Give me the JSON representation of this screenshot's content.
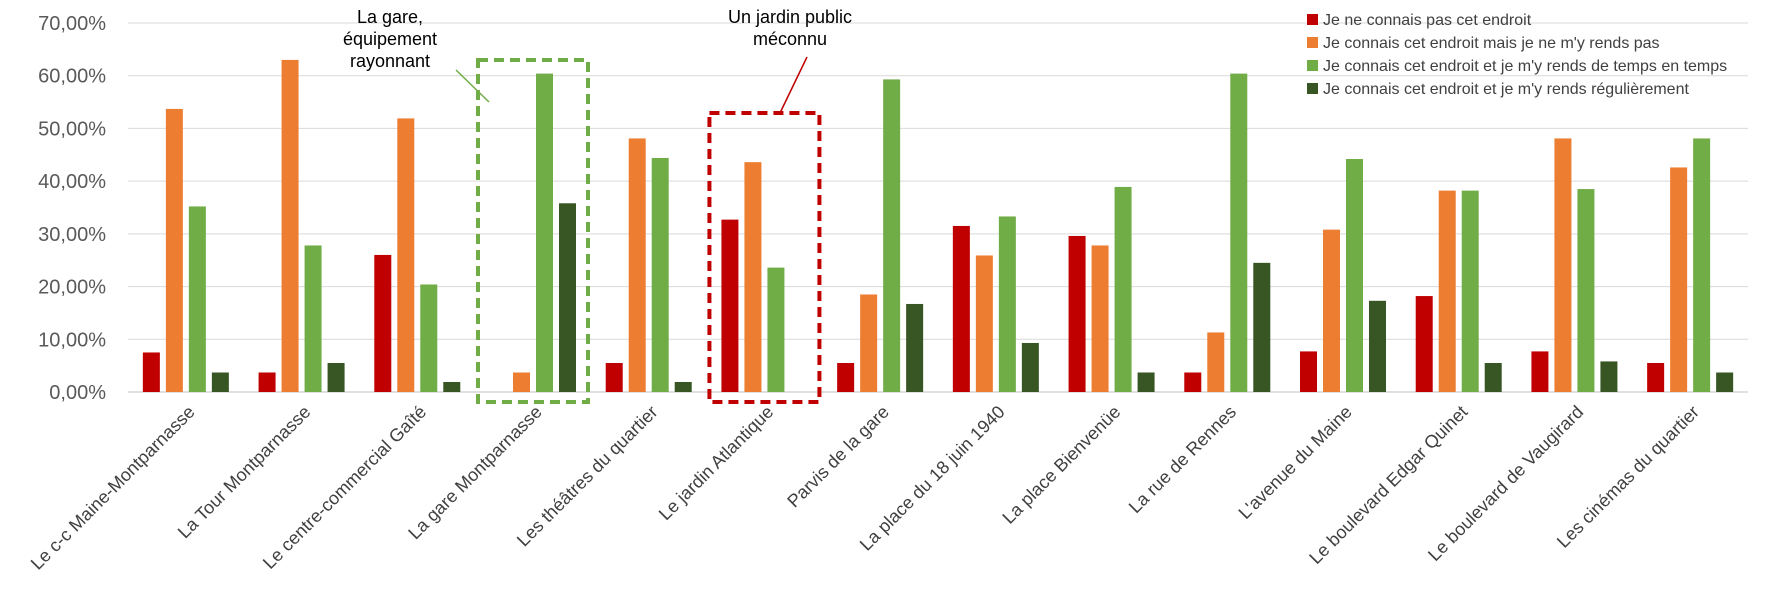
{
  "chart_data": {
    "type": "bar",
    "title": "",
    "xlabel": "",
    "ylabel": "",
    "ylim": [
      0,
      70
    ],
    "y_tick_values": [
      0,
      10,
      20,
      30,
      40,
      50,
      60,
      70
    ],
    "y_tick_labels": [
      "0,00%",
      "10,00%",
      "20,00%",
      "30,00%",
      "40,00%",
      "50,00%",
      "60,00%",
      "70,00%"
    ],
    "grid": true,
    "legend_position": "top-right",
    "categories": [
      "Le c-c Maine-Montparnasse",
      "La Tour Montparnasse",
      "Le centre-commercial Gaîté",
      "La gare Montparnasse",
      "Les théâtres du quartier",
      "Le jardin Atlantique",
      "Parvis de la gare",
      "La place du 18 juin 1940",
      "La place Bienvenüe",
      "La rue de Rennes",
      "L'avenue du Maine",
      "Le boulevard Edgar Quinet",
      "Le boulevard de Vaugirard",
      "Les cinémas du quartier"
    ],
    "series": [
      {
        "name": "Je ne connais pas cet endroit",
        "color": "#C00000",
        "values": [
          7.5,
          3.7,
          26.0,
          0,
          5.5,
          32.7,
          5.5,
          31.5,
          29.6,
          3.7,
          7.7,
          18.2,
          7.7,
          5.5
        ]
      },
      {
        "name": "Je connais cet endroit mais je ne m'y rends pas",
        "color": "#ED7D31",
        "values": [
          53.7,
          63.0,
          51.9,
          3.7,
          48.1,
          43.6,
          18.5,
          25.9,
          27.8,
          11.3,
          30.8,
          38.2,
          48.1,
          42.6
        ]
      },
      {
        "name": "Je connais cet endroit et je m'y rends de temps en temps",
        "color": "#70AD47",
        "values": [
          35.2,
          27.8,
          20.4,
          60.4,
          44.4,
          23.6,
          59.3,
          33.3,
          38.9,
          60.4,
          44.2,
          38.2,
          38.5,
          48.1
        ]
      },
      {
        "name": "Je connais cet endroit et je m'y rends régulièrement",
        "color": "#375623",
        "values": [
          3.7,
          5.5,
          1.9,
          35.8,
          1.9,
          null,
          16.7,
          9.3,
          3.7,
          24.5,
          17.3,
          5.5,
          5.8,
          3.7
        ]
      }
    ],
    "annotations": [
      {
        "text_lines": [
          "La gare,",
          "équipement",
          "rayonnant"
        ],
        "target_category": "La gare Montparnasse",
        "color": "#70AD47",
        "style": "dashed-box"
      },
      {
        "text_lines": [
          "Un jardin public",
          "méconnu"
        ],
        "target_category": "Le jardin Atlantique",
        "color": "#C00000",
        "style": "dashed-box"
      }
    ]
  }
}
